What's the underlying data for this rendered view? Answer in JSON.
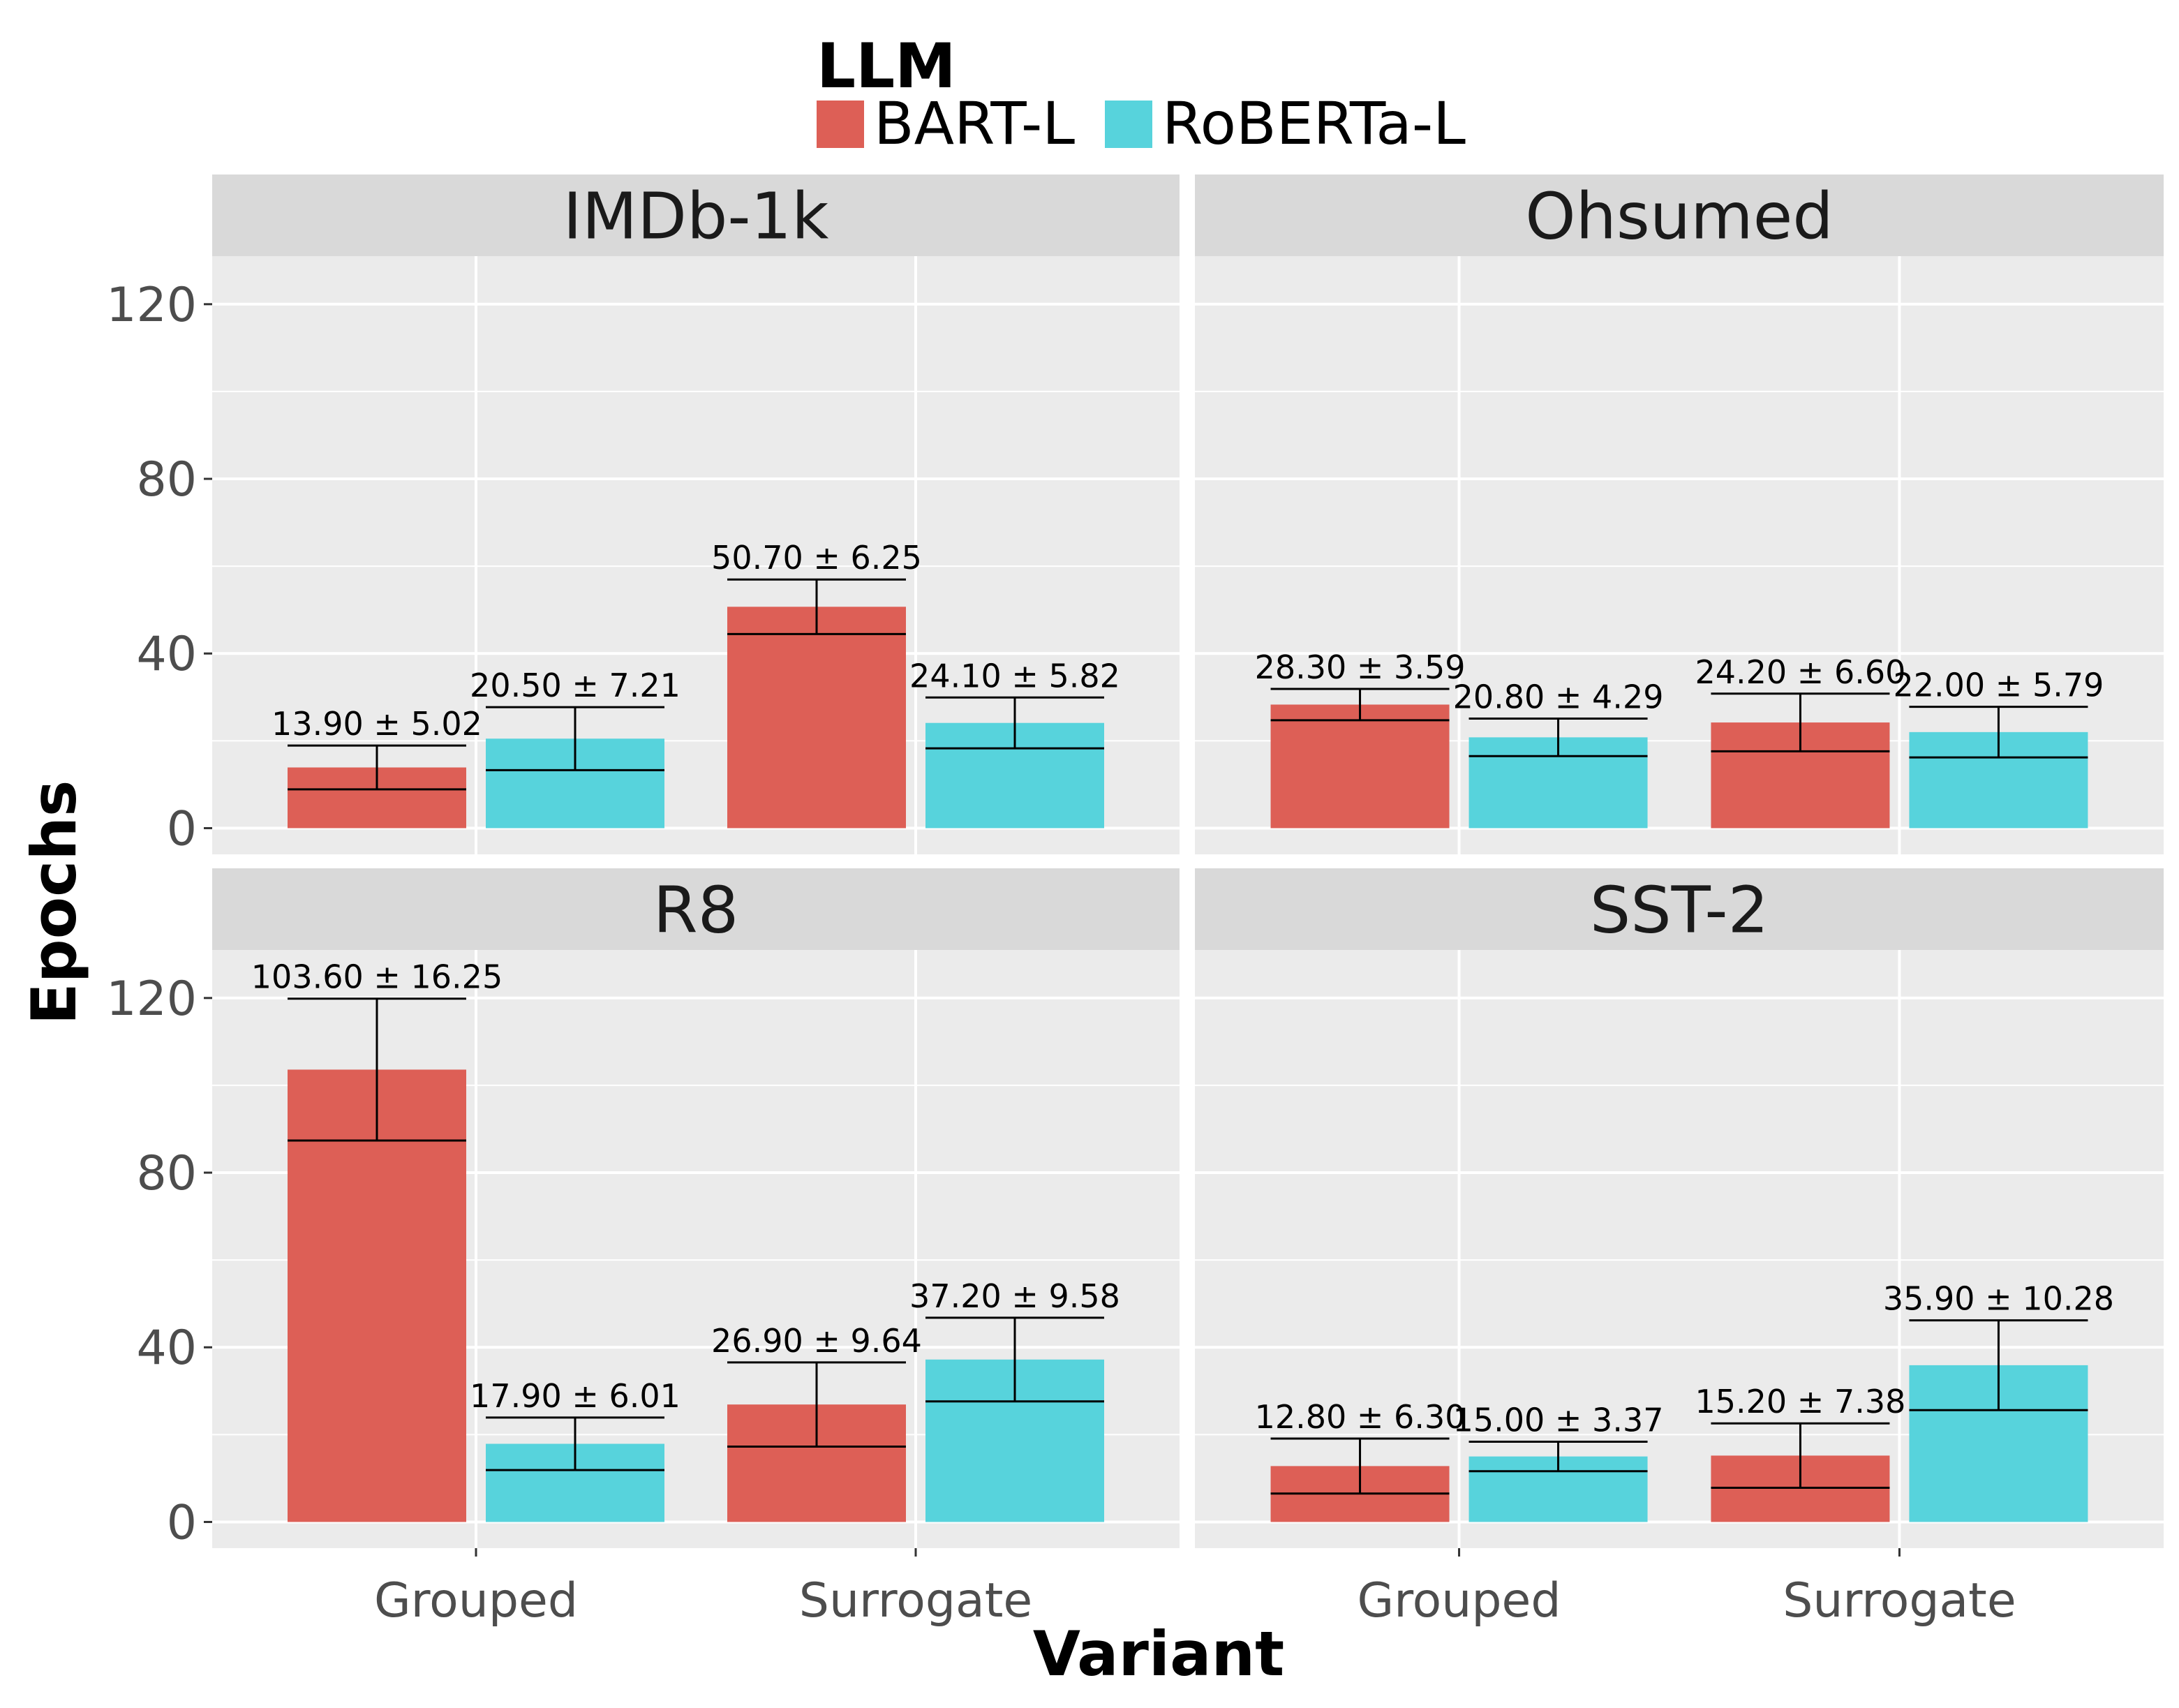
{
  "chart_data": {
    "type": "bar",
    "xlabel": "Variant",
    "ylabel": "Epochs",
    "ylim": [
      -6,
      131
    ],
    "yticks": [
      0,
      40,
      80,
      120
    ],
    "categories": [
      "Grouped",
      "Surrogate"
    ],
    "legend": {
      "title": "LLM",
      "position": "top",
      "entries": [
        {
          "name": "BART-L",
          "color": "#DD5F56"
        },
        {
          "name": "RoBERTa-L",
          "color": "#57D3DC"
        }
      ]
    },
    "grid": true,
    "facets": [
      {
        "title": "IMDb-1k",
        "series": [
          {
            "name": "BART-L",
            "values": [
              13.9,
              50.7
            ],
            "errors": [
              5.02,
              6.25
            ],
            "labels": [
              "13.90 ± 5.02",
              "50.70 ± 6.25"
            ]
          },
          {
            "name": "RoBERTa-L",
            "values": [
              20.5,
              24.1
            ],
            "errors": [
              7.21,
              5.82
            ],
            "labels": [
              "20.50 ± 7.21",
              "24.10 ± 5.82"
            ]
          }
        ]
      },
      {
        "title": "Ohsumed",
        "series": [
          {
            "name": "BART-L",
            "values": [
              28.3,
              24.2
            ],
            "errors": [
              3.59,
              6.6
            ],
            "labels": [
              "28.30 ± 3.59",
              "24.20 ± 6.60"
            ]
          },
          {
            "name": "RoBERTa-L",
            "values": [
              20.8,
              22.0
            ],
            "errors": [
              4.29,
              5.79
            ],
            "labels": [
              "20.80 ± 4.29",
              "22.00 ± 5.79"
            ]
          }
        ]
      },
      {
        "title": "R8",
        "series": [
          {
            "name": "BART-L",
            "values": [
              103.6,
              26.9
            ],
            "errors": [
              16.25,
              9.64
            ],
            "labels": [
              "103.60 ± 16.25",
              "26.90 ± 9.64"
            ]
          },
          {
            "name": "RoBERTa-L",
            "values": [
              17.9,
              37.2
            ],
            "errors": [
              6.01,
              9.58
            ],
            "labels": [
              "17.90 ± 6.01",
              "37.20 ± 9.58"
            ]
          }
        ]
      },
      {
        "title": "SST-2",
        "series": [
          {
            "name": "BART-L",
            "values": [
              12.8,
              15.2
            ],
            "errors": [
              6.3,
              7.38
            ],
            "labels": [
              "12.80 ± 6.30",
              "15.20 ± 7.38"
            ]
          },
          {
            "name": "RoBERTa-L",
            "values": [
              15.0,
              35.9
            ],
            "errors": [
              3.37,
              10.28
            ],
            "labels": [
              "15.00 ± 3.37",
              "35.90 ± 10.28"
            ]
          }
        ]
      }
    ]
  },
  "colors": {
    "panel_background": "#EBEBEB",
    "strip_background": "#D9D9D9",
    "grid": "#FFFFFF",
    "tick_text": "#4D4D4D"
  }
}
